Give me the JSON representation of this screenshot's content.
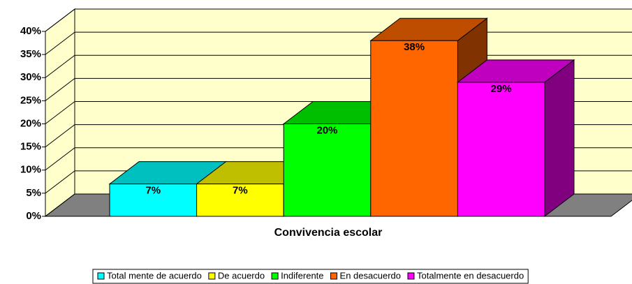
{
  "chart_data": {
    "type": "bar",
    "x_label": "Convivencia escolar",
    "categories": [
      "Convivencia escolar"
    ],
    "series": [
      {
        "name": "Total mente de acuerdo",
        "color": "#00ffff",
        "values": [
          7
        ],
        "value_labels": [
          "7%"
        ]
      },
      {
        "name": "De acuerdo",
        "color": "#ffff00",
        "values": [
          7
        ],
        "value_labels": [
          "7%"
        ]
      },
      {
        "name": "Indiferente",
        "color": "#00ff00",
        "values": [
          20
        ],
        "value_labels": [
          "20%"
        ]
      },
      {
        "name": "En desacuerdo",
        "color": "#ff6600",
        "values": [
          38
        ],
        "value_labels": [
          "38%"
        ]
      },
      {
        "name": "Totalmente en desacuerdo",
        "color": "#ff00ff",
        "values": [
          29
        ],
        "value_labels": [
          "29%"
        ]
      }
    ],
    "ylim": [
      0,
      40
    ],
    "yticks": [
      {
        "value": 0,
        "label": "0%"
      },
      {
        "value": 5,
        "label": "5%"
      },
      {
        "value": 10,
        "label": "10%"
      },
      {
        "value": 15,
        "label": "15%"
      },
      {
        "value": 20,
        "label": "20%"
      },
      {
        "value": 25,
        "label": "25%"
      },
      {
        "value": 30,
        "label": "30%"
      },
      {
        "value": 35,
        "label": "35%"
      },
      {
        "value": 40,
        "label": "40%"
      }
    ],
    "grid": true,
    "legend": "bottom"
  }
}
